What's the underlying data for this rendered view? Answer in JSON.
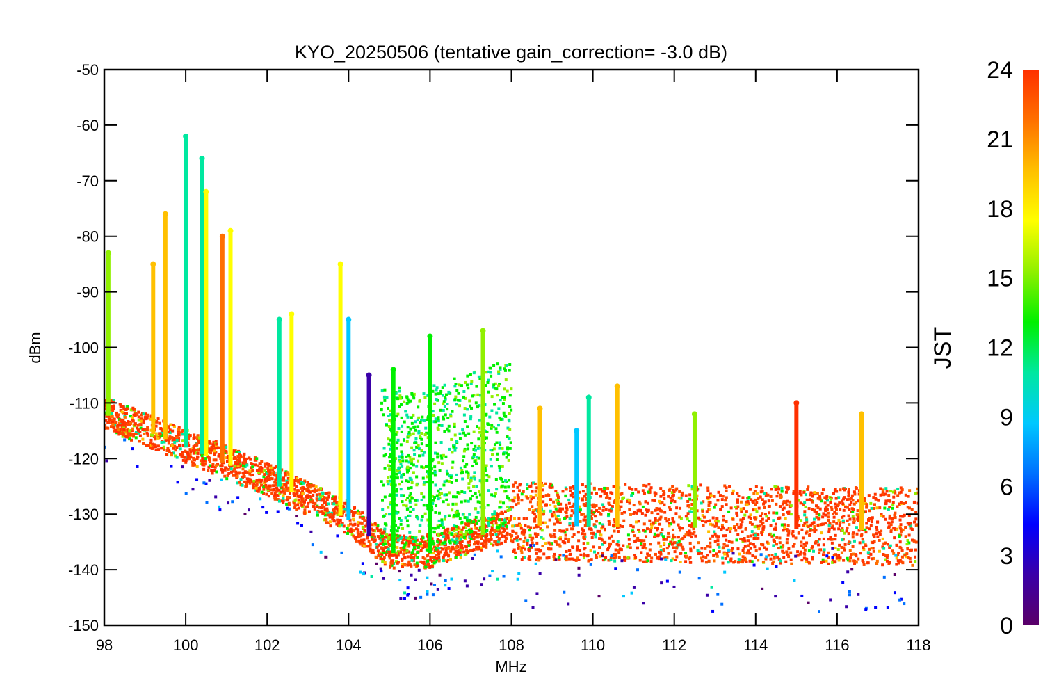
{
  "chart_data": {
    "type": "scatter",
    "title": "KYO_20250506 (tentative gain_correction= -3.0 dB)",
    "xlabel": "MHz",
    "ylabel": "dBm",
    "xlim": [
      98,
      118
    ],
    "ylim": [
      -150,
      -50
    ],
    "xticks": [
      "98",
      "100",
      "102",
      "104",
      "106",
      "108",
      "110",
      "112",
      "114",
      "116",
      "118"
    ],
    "yticks": [
      "-50",
      "-60",
      "-70",
      "-80",
      "-90",
      "-100",
      "-110",
      "-120",
      "-130",
      "-140",
      "-150"
    ],
    "grid": false,
    "marker": "asterisk",
    "colorbar": {
      "label": "JST",
      "range": [
        0,
        24
      ],
      "ticks": [
        "0",
        "3",
        "6",
        "9",
        "12",
        "15",
        "18",
        "21",
        "24"
      ],
      "colormap": [
        "#5a0068",
        "#3a00a8",
        "#0000ff",
        "#0070ff",
        "#00c8ff",
        "#00e8a0",
        "#00f000",
        "#90f000",
        "#ffff00",
        "#ffc000",
        "#ff7000",
        "#ff3000"
      ]
    },
    "noise_floor": {
      "description_points": [
        {
          "x": 98.0,
          "y": -112
        },
        {
          "x": 100.0,
          "y": -118
        },
        {
          "x": 102.0,
          "y": -124
        },
        {
          "x": 104.0,
          "y": -131
        },
        {
          "x": 105.0,
          "y": -137
        },
        {
          "x": 106.0,
          "y": -137
        },
        {
          "x": 108.0,
          "y": -132
        },
        {
          "x": 118.0,
          "y": -133
        }
      ]
    },
    "series": [
      {
        "x": 98.1,
        "peak": -83,
        "jst": 15
      },
      {
        "x": 99.2,
        "peak": -85,
        "jst": 19
      },
      {
        "x": 99.5,
        "peak": -76,
        "jst": 20
      },
      {
        "x": 100.0,
        "peak": -62,
        "jst": 10
      },
      {
        "x": 100.4,
        "peak": -66,
        "jst": 10
      },
      {
        "x": 100.5,
        "peak": -72,
        "jst": 17
      },
      {
        "x": 100.9,
        "peak": -80,
        "jst": 21
      },
      {
        "x": 101.1,
        "peak": -79,
        "jst": 18
      },
      {
        "x": 102.3,
        "peak": -95,
        "jst": 11
      },
      {
        "x": 102.6,
        "peak": -94,
        "jst": 17
      },
      {
        "x": 103.8,
        "peak": -85,
        "jst": 18
      },
      {
        "x": 104.0,
        "peak": -95,
        "jst": 8
      },
      {
        "x": 104.5,
        "peak": -105,
        "jst": 3
      },
      {
        "x": 105.1,
        "peak": -104,
        "jst": 13
      },
      {
        "x": 106.0,
        "peak": -98,
        "jst": 14
      },
      {
        "x": 107.3,
        "peak": -97,
        "jst": 15
      },
      {
        "x": 108.7,
        "peak": -111,
        "jst": 20
      },
      {
        "x": 109.6,
        "peak": -115,
        "jst": 9
      },
      {
        "x": 109.9,
        "peak": -109,
        "jst": 11
      },
      {
        "x": 110.6,
        "peak": -107,
        "jst": 20
      },
      {
        "x": 112.5,
        "peak": -112,
        "jst": 15
      },
      {
        "x": 115.0,
        "peak": -110,
        "jst": 23
      },
      {
        "x": 116.6,
        "peak": -112,
        "jst": 20
      }
    ]
  }
}
